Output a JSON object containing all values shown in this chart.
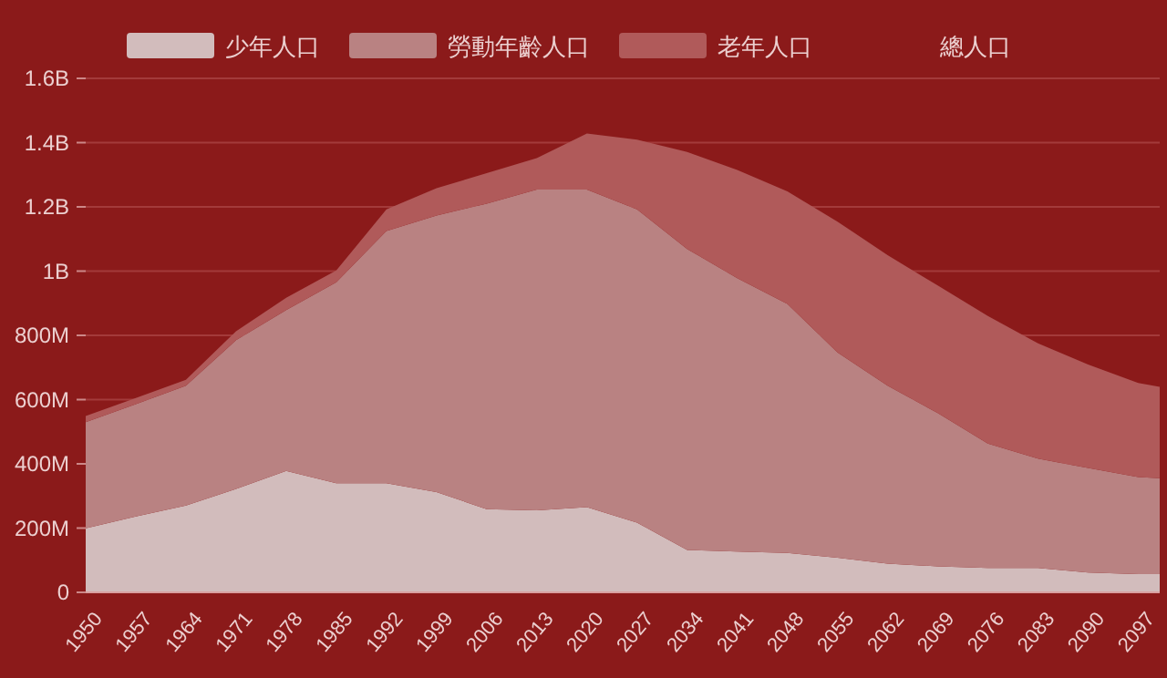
{
  "chart_data": {
    "type": "area",
    "stacked": true,
    "x": [
      1950,
      1957,
      1964,
      1971,
      1978,
      1985,
      1992,
      1999,
      2006,
      2013,
      2020,
      2027,
      2034,
      2041,
      2048,
      2055,
      2062,
      2069,
      2076,
      2083,
      2090,
      2097,
      2100
    ],
    "series": [
      {
        "name": "少年人口",
        "color": "#d2bcbc",
        "values": [
          199000000,
          236000000,
          270000000,
          322000000,
          378000000,
          340000000,
          340000000,
          312000000,
          259000000,
          255000000,
          265000000,
          217000000,
          132000000,
          127000000,
          123000000,
          108000000,
          89000000,
          81000000,
          76000000,
          76000000,
          62000000,
          57000000,
          57000000
        ]
      },
      {
        "name": "勞動年齡人口",
        "color": "#b98282",
        "values": [
          331000000,
          350000000,
          373000000,
          463000000,
          501000000,
          625000000,
          785000000,
          861000000,
          951000000,
          999000000,
          989000000,
          975000000,
          937000000,
          851000000,
          775000000,
          639000000,
          554000000,
          477000000,
          387000000,
          340000000,
          325000000,
          302000000,
          298000000
        ]
      },
      {
        "name": "老年人口",
        "color": "#b05a5a",
        "values": [
          19000000,
          19000000,
          19000000,
          28000000,
          38000000,
          37000000,
          67000000,
          85000000,
          95000000,
          98000000,
          174000000,
          217000000,
          302000000,
          337000000,
          350000000,
          407000000,
          407000000,
          397000000,
          397000000,
          359000000,
          322000000,
          293000000,
          285000000
        ]
      },
      {
        "name": "總人口",
        "color": null,
        "values": [
          null,
          null,
          null,
          null,
          null,
          null,
          null,
          null,
          null,
          null,
          null,
          null,
          null,
          null,
          null,
          null,
          null,
          null,
          null,
          null,
          null,
          null,
          null
        ]
      }
    ],
    "xlim": [
      1950,
      2100
    ],
    "xticks": [
      1950,
      1957,
      1964,
      1971,
      1978,
      1985,
      1992,
      1999,
      2006,
      2013,
      2020,
      2027,
      2034,
      2041,
      2048,
      2055,
      2062,
      2069,
      2076,
      2083,
      2090,
      2097
    ],
    "ylim": [
      0,
      1600000000
    ],
    "yticks": [
      0,
      {
        "value": 200000000,
        "label": "200M"
      },
      {
        "value": 400000000,
        "label": "400M"
      },
      {
        "value": 600000000,
        "label": "600M"
      },
      {
        "value": 800000000,
        "label": "800M"
      },
      {
        "value": 1000000000,
        "label": "1B"
      },
      {
        "value": 1200000000,
        "label": "1.2B"
      },
      {
        "value": 1400000000,
        "label": "1.4B"
      },
      {
        "value": 1600000000,
        "label": "1.6B"
      }
    ],
    "grid": "y",
    "legend": "top"
  }
}
